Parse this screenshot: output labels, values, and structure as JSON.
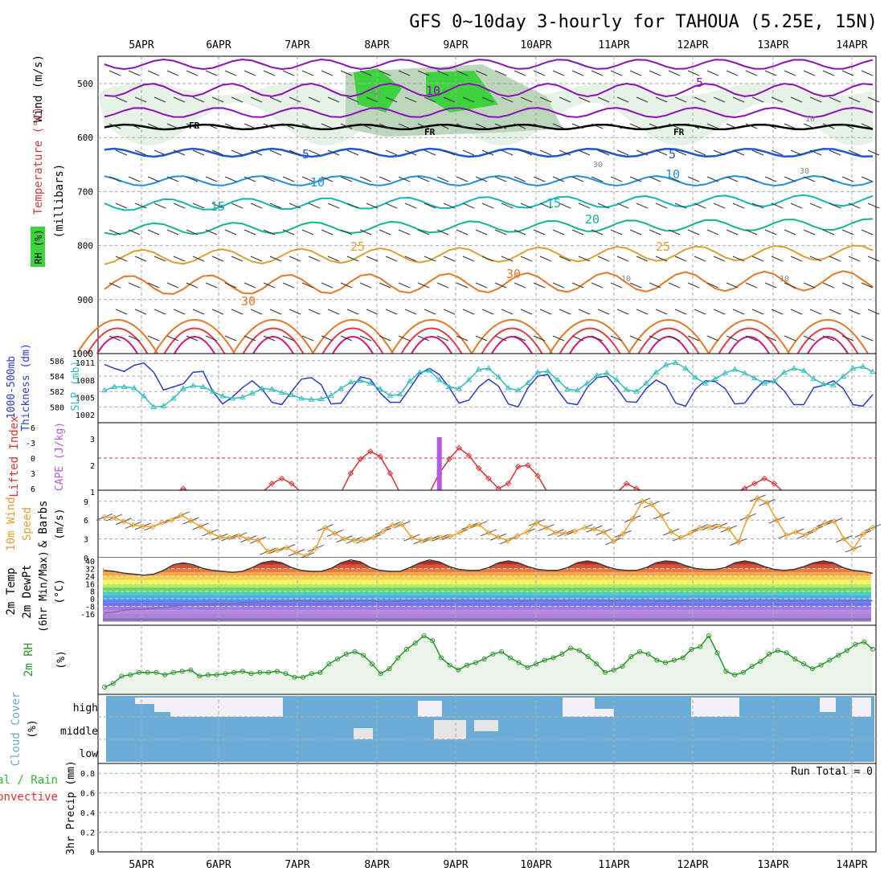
{
  "title": "GFS 0~10day 3-hourly for TAHOUA (5.25E, 15N)",
  "days": [
    "5APR",
    "6APR",
    "7APR",
    "8APR",
    "9APR",
    "10APR",
    "11APR",
    "12APR",
    "13APR",
    "14APR"
  ],
  "colors": {
    "grid": "#aaaaaa",
    "rh_fill_light": "#e6f2e6",
    "rh_fill_mid": "#bcd6bc",
    "rh_fill_dark": "#7fba7f",
    "rh_fill_bright": "#3ed23e",
    "wind_contour": "#8a12b8",
    "freezing": "#000000",
    "iso_blue": "#1e56d8",
    "iso_sky": "#1e90e0",
    "iso_teal": "#14b4b4",
    "iso_green": "#14b48c",
    "iso_gold": "#dca032",
    "iso_orange": "#e27828",
    "iso_red": "#e23c46",
    "iso_magenta": "#d21478",
    "thickness": "#2a3cc8",
    "slp": "#32bebe",
    "lifted_index": "#dc3232",
    "cape": "#b45ae6",
    "wind10": "#e6a032",
    "rh2m": "#2a962a",
    "rh2m_fill": "#eaf4e8",
    "cloud": "#6aacd6",
    "cloud_clear": "#f3f0f7",
    "cloud_mid_clear": "#e6e6e6",
    "precip_rain": "#32b432",
    "precip_conv": "#dc3232"
  },
  "panels": {
    "upper": {
      "labels": {
        "wind": "Wind (m/s)",
        "temp": "Temperature (°C)",
        "rh": "RH (%)",
        "unit": "(millibars)"
      },
      "yticks": [
        "500",
        "600",
        "700",
        "800",
        "900",
        "1000"
      ],
      "annotations": {
        "fr": [
          "FR",
          "FR",
          "FR"
        ],
        "wind_vals": [
          "5",
          "10"
        ],
        "rh_vals": [
          "50",
          "30",
          "30",
          "10",
          "10",
          "10"
        ],
        "temps": [
          "5",
          "5",
          "10",
          "10",
          "15",
          "15",
          "20",
          "25",
          "25",
          "30",
          "30"
        ]
      }
    },
    "thickness": {
      "labels": {
        "thick": "1000-500mb",
        "thick2": "Thickness (dm)",
        "slp": "SLP (mb)"
      },
      "yticks_left": [
        "586",
        "584",
        "582",
        "580"
      ],
      "yticks_right": [
        "1011",
        "1008",
        "1005",
        "1002"
      ]
    },
    "li": {
      "labels": {
        "li": "Lifted Index",
        "cape": "CAPE (J/kg)"
      },
      "yticks_left": [
        "-6",
        "-3",
        "0",
        "3",
        "6"
      ],
      "yticks_right": [
        "3",
        "2",
        "1"
      ]
    },
    "wind10": {
      "labels": {
        "name": "10m Wind",
        "speed": "Speed",
        "barbs": "& Barbs",
        "unit": "(m/s)"
      },
      "yticks": [
        "9",
        "6",
        "3",
        "0"
      ]
    },
    "temp2m": {
      "labels": {
        "name": "2m Temp",
        "dew": "2m DewPt",
        "minmax": "(6hr Min/Max)",
        "unit": "(°C)"
      },
      "yticks": [
        "40",
        "32",
        "24",
        "16",
        "8",
        "0",
        "-8",
        "-16"
      ]
    },
    "rh2m": {
      "labels": {
        "name": "2m RH",
        "unit": "(%)"
      }
    },
    "cloud": {
      "labels": {
        "name": "Cloud Cover",
        "unit": "(%)"
      },
      "yticks": [
        "high",
        "middle",
        "low"
      ]
    },
    "precip": {
      "labels": {
        "total": "Total / Rain",
        "conv": "Convective",
        "name": "3hr Precip (mm)",
        "run_total": "Run Total = 0"
      },
      "yticks": [
        "0.8",
        "0.6",
        "0.4",
        "0.2",
        "0"
      ]
    }
  },
  "chart_data": {
    "type": "line",
    "title": "GFS 0~10day 3-hourly for TAHOUA (5.25E, 15N)",
    "x_axis": [
      "5APR",
      "6APR",
      "7APR",
      "8APR",
      "9APR",
      "10APR",
      "11APR",
      "12APR",
      "13APR",
      "14APR"
    ],
    "series": [
      {
        "name": "1000-500mb Thickness (dm)",
        "values": [
          585.5,
          585.0,
          584.6,
          585.4,
          585.7,
          584.5,
          582.2,
          582.6,
          583.0,
          584.5,
          584.6,
          582.0,
          580.4,
          581.3,
          582.5,
          583.4,
          582.3,
          580.6,
          580.3,
          582.0,
          583.6,
          583.8,
          582.9,
          580.4,
          580.5,
          582.3,
          583.9,
          583.6,
          581.8,
          580.6,
          580.6,
          582.4,
          584.3,
          585.0,
          584.2,
          582.5,
          580.5,
          580.9,
          582.6,
          583.6,
          582.7,
          580.4,
          580.0,
          582.5,
          584.0,
          584.2,
          582.2,
          580.5,
          580.3,
          582.5,
          583.8,
          584.0,
          582.5,
          580.7,
          580.6,
          582.4,
          583.5,
          582.8,
          580.5,
          580.1,
          582.3,
          583.4,
          583.3,
          582.4,
          580.4,
          580.5,
          582.2,
          583.4,
          583.3,
          582.1,
          580.3,
          580.3,
          582.5,
          582.8,
          583.4,
          582.4,
          580.3,
          580.1,
          581.6
        ]
      },
      {
        "name": "SLP (mb)",
        "values": [
          1006.2,
          1006.8,
          1006.8,
          1006.6,
          1005.2,
          1003.3,
          1003.5,
          1004.8,
          1006.5,
          1007.0,
          1006.8,
          1006.0,
          1005.2,
          1004.8,
          1005.0,
          1005.7,
          1006.5,
          1006.4,
          1005.8,
          1005.4,
          1004.8,
          1004.6,
          1004.7,
          1005.3,
          1006.5,
          1007.6,
          1007.9,
          1007.4,
          1006.4,
          1005.3,
          1005.5,
          1007.8,
          1009.3,
          1009.6,
          1008.0,
          1006.8,
          1006.5,
          1008.0,
          1009.8,
          1010.0,
          1008.5,
          1006.6,
          1006.2,
          1007.5,
          1009.3,
          1009.5,
          1008.0,
          1006.4,
          1006.2,
          1007.4,
          1008.8,
          1009.2,
          1008.0,
          1006.3,
          1006.0,
          1007.4,
          1009.3,
          1010.6,
          1011.0,
          1010.0,
          1008.4,
          1007.4,
          1008.2,
          1009.2,
          1009.8,
          1009.2,
          1008.3,
          1007.4,
          1007.8,
          1009.3,
          1010.0,
          1009.6,
          1008.2,
          1007.3,
          1007.1,
          1008.6,
          1010.0,
          1010.3,
          1009.4
        ]
      },
      {
        "name": "Lifted Index",
        "values": [
          7,
          7,
          7,
          7,
          7,
          7,
          7,
          7,
          6,
          7,
          7,
          7,
          7,
          7,
          7,
          7,
          7,
          5,
          4,
          5,
          7,
          7,
          7,
          7,
          7,
          3,
          0.2,
          -1.3,
          -0.3,
          3,
          7,
          7,
          7,
          7,
          3,
          0.2,
          -2,
          -0.5,
          2,
          4,
          6,
          5,
          1.7,
          1.4,
          3.5,
          7,
          7,
          7,
          7,
          7,
          7,
          7,
          7,
          5,
          6,
          7,
          7,
          7,
          7,
          7,
          7,
          7,
          7,
          7,
          7,
          6,
          5,
          4,
          5,
          7,
          7,
          7,
          7,
          7,
          7,
          7,
          7,
          7,
          7
        ]
      },
      {
        "name": "CAPE (J/kg)",
        "values": [
          0,
          0,
          0,
          0,
          0,
          0,
          0,
          0,
          0,
          0,
          0,
          0,
          0,
          0,
          0,
          0,
          0,
          0,
          0,
          0,
          0,
          0,
          0,
          0,
          0,
          0,
          0,
          0,
          0,
          0,
          0,
          0,
          0,
          0,
          3.0,
          0,
          0,
          0,
          0,
          0,
          0,
          0,
          0,
          0,
          0,
          0,
          0,
          0,
          0,
          0,
          0,
          0,
          0,
          0,
          0,
          0,
          0,
          0,
          0,
          0,
          0,
          0,
          0,
          0,
          0,
          0,
          0,
          0,
          0,
          0,
          0,
          0,
          0,
          0,
          0,
          0,
          0,
          0,
          0
        ]
      },
      {
        "name": "10m Wind Speed (m/s)",
        "values": [
          6.5,
          6.4,
          5.8,
          5.2,
          5.0,
          4.9,
          5.6,
          6.0,
          6.8,
          5.9,
          5.0,
          4.0,
          3.3,
          3.2,
          3.5,
          3.0,
          2.8,
          1.0,
          1.2,
          1.6,
          0.8,
          0.3,
          1.5,
          4.8,
          3.9,
          3.0,
          2.8,
          2.8,
          3.2,
          4.2,
          5.2,
          5.3,
          3.2,
          2.7,
          3.0,
          3.2,
          3.4,
          4.0,
          5.0,
          5.3,
          4.0,
          3.3,
          2.7,
          3.5,
          4.1,
          5.6,
          4.8,
          4.0,
          3.9,
          4.2,
          4.8,
          4.6,
          4.1,
          2.6,
          3.8,
          6.2,
          9.0,
          8.5,
          6.7,
          4.1,
          3.2,
          3.9,
          4.8,
          4.9,
          5.0,
          4.6,
          2.5,
          6.5,
          9.5,
          8.8,
          6.0,
          3.6,
          4.1,
          3.6,
          4.5,
          5.5,
          5.8,
          3.0,
          1.4,
          3.8,
          4.8
        ]
      },
      {
        "name": "2m Temp (°C)",
        "values": [
          30,
          29,
          27,
          26,
          25,
          26,
          30,
          36,
          38,
          36,
          32,
          30,
          29,
          28,
          29,
          33,
          38,
          40,
          38,
          33,
          30,
          29,
          29,
          32,
          38,
          41,
          39,
          33,
          30,
          29,
          29,
          33,
          38,
          41,
          39,
          34,
          31,
          30,
          30,
          33,
          38,
          40,
          38,
          34,
          31,
          30,
          30,
          33,
          38,
          40,
          38,
          34,
          31,
          30,
          30,
          33,
          38,
          40,
          39,
          35,
          32,
          31,
          31,
          33,
          38,
          40,
          38,
          34,
          31,
          30,
          31,
          34,
          38,
          40,
          38,
          33,
          30,
          29,
          27
        ]
      },
      {
        "name": "2m DewPt (°C)",
        "values": [
          -15,
          -14,
          -12,
          -11,
          -11,
          -10,
          -9,
          -8,
          -7,
          -7,
          -6,
          -6,
          -5,
          -5,
          -4,
          -4,
          -3,
          -3,
          -3,
          -2,
          -2,
          -2,
          -3,
          -3,
          -2,
          -2,
          -2,
          -2,
          -3,
          -3,
          -2,
          -2,
          -1,
          -1,
          -2,
          -2,
          -1,
          -1,
          -2,
          -2,
          -1,
          -1,
          -2,
          -2,
          -1,
          -1,
          -2,
          -2,
          -1,
          -1,
          -1,
          -2,
          -2,
          -1,
          -1,
          -1,
          -2,
          -2,
          -2,
          -2,
          -1,
          -1,
          -1,
          -2,
          -2,
          -2,
          -1,
          -1,
          -1,
          -2,
          -2,
          -2,
          -1,
          -1,
          -1,
          -2,
          -2,
          -2,
          -2
        ]
      },
      {
        "name": "2m RH (%)",
        "values": [
          2,
          5,
          11,
          12,
          14,
          14,
          14,
          12,
          14,
          15,
          16,
          11,
          12,
          12,
          13,
          14,
          15,
          13,
          14,
          14,
          15,
          13,
          10,
          10,
          13,
          14,
          21,
          25,
          29,
          31,
          28,
          21,
          13,
          17,
          26,
          33,
          38,
          44,
          40,
          26,
          20,
          16,
          20,
          22,
          25,
          29,
          31,
          26,
          22,
          18,
          21,
          24,
          26,
          29,
          34,
          32,
          27,
          21,
          14,
          16,
          19,
          27,
          31,
          29,
          24,
          22,
          24,
          26,
          33,
          35,
          44,
          30,
          15,
          12,
          14,
          19,
          23,
          29,
          32,
          30,
          25,
          21,
          17,
          20,
          24,
          28,
          32,
          37,
          39,
          33
        ]
      },
      {
        "name": "Run Total Precip (mm)",
        "values": [
          0
        ]
      }
    ]
  }
}
